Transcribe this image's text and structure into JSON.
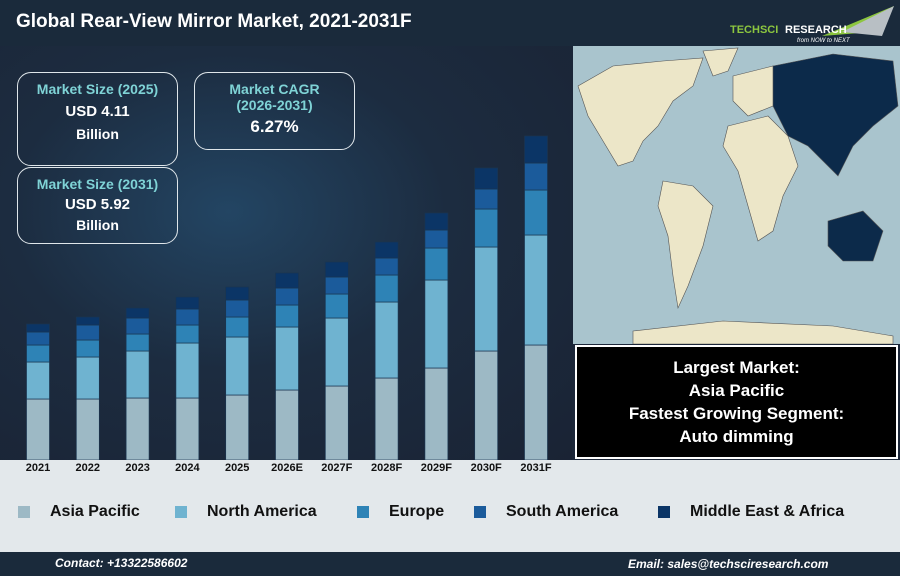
{
  "header": {
    "title": "Global Rear-View Mirror Market, 2021-2031F",
    "logo_text": "TechSci Research",
    "logo_tagline": "from NOW to NEXT"
  },
  "cards": {
    "size2025": {
      "label": "Market Size (2025)",
      "value": "USD 4.11",
      "unit": "Billion"
    },
    "cagr": {
      "label": "Market CAGR",
      "period": "(2026-2031)",
      "value": "6.27%"
    },
    "size2031": {
      "label": "Market Size (2031)",
      "value": "USD 5.92",
      "unit": "Billion"
    }
  },
  "insight": {
    "line1": "Largest Market:",
    "line2": "Asia Pacific",
    "line3": "Fastest Growing Segment:",
    "line4": "Auto dimming"
  },
  "footer": {
    "contact": "Contact: +13322586602",
    "email": "Email: sales@techsciresearch.com"
  },
  "chart_data": {
    "type": "bar",
    "stacked": true,
    "title": "",
    "xlabel": "",
    "ylabel": "",
    "y_axis_shown": false,
    "grid": false,
    "legend_position": "bottom",
    "categories": [
      "2021",
      "2022",
      "2023",
      "2024",
      "2025",
      "2026E",
      "2027F",
      "2028F",
      "2029F",
      "2030F",
      "2031F"
    ],
    "series": [
      {
        "name": "Asia Pacific",
        "color": "#9db9c5",
        "values": [
          61,
          61,
          62,
          62,
          65,
          70,
          74,
          82,
          92,
          109,
          115
        ]
      },
      {
        "name": "North America",
        "color": "#6fb3d0",
        "values": [
          37,
          42,
          47,
          55,
          58,
          63,
          68,
          76,
          88,
          104,
          110
        ]
      },
      {
        "name": "Europe",
        "color": "#2e83b6",
        "values": [
          17,
          17,
          17,
          18,
          20,
          22,
          24,
          27,
          32,
          38,
          45
        ]
      },
      {
        "name": "South America",
        "color": "#1b5b9b",
        "values": [
          13,
          15,
          16,
          16,
          17,
          17,
          17,
          17,
          18,
          20,
          27
        ]
      },
      {
        "name": "Middle East & Africa",
        "color": "#0b3566",
        "values": [
          8,
          8,
          10,
          12,
          13,
          15,
          15,
          16,
          17,
          21,
          27
        ]
      }
    ]
  }
}
